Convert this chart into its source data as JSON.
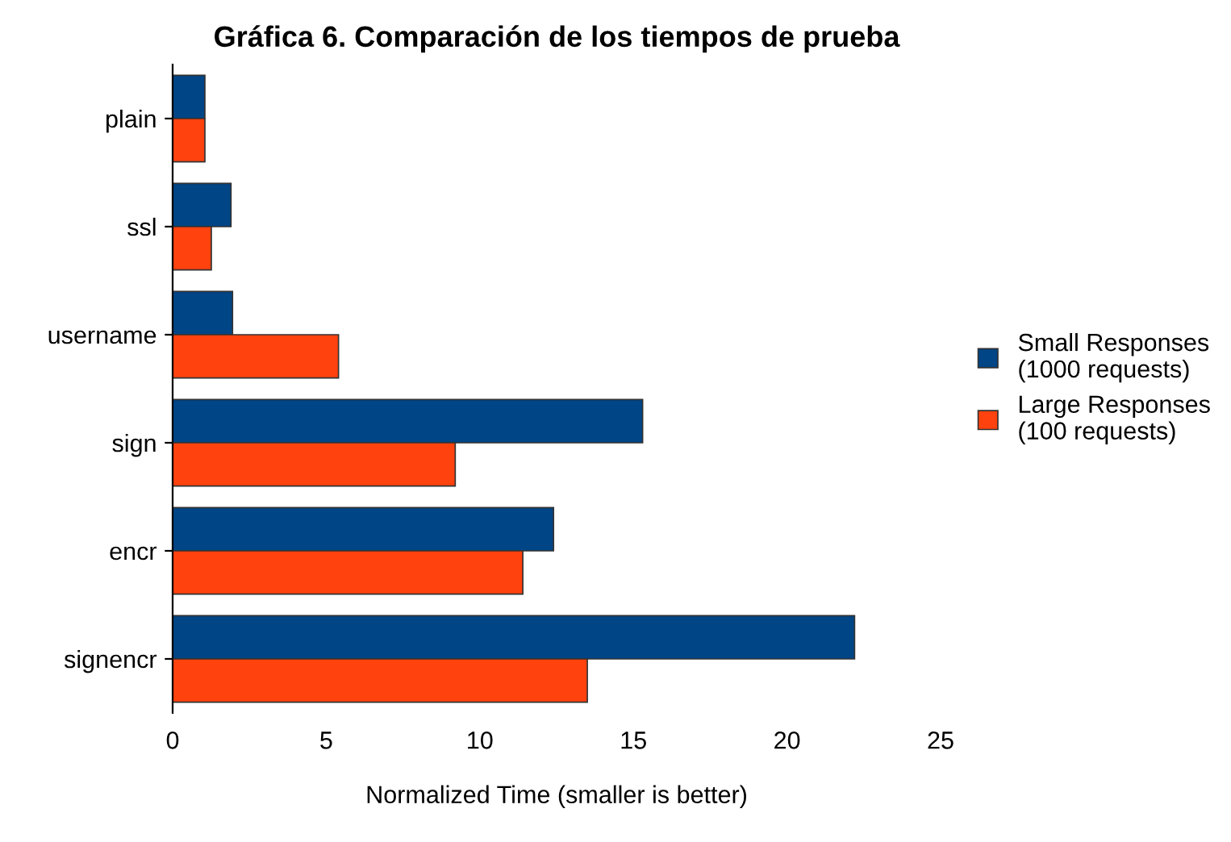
{
  "chart_data": {
    "type": "bar",
    "orientation": "horizontal",
    "title": "Gráfica 6. Comparación de los tiempos de prueba",
    "xlabel": "Normalized Time (smaller is better)",
    "categories": [
      "plain",
      "ssl",
      "username",
      "sign",
      "encr",
      "signencr"
    ],
    "series": [
      {
        "name": "Small Responses\n(1000 requests)",
        "color": "#004586",
        "values": [
          1.05,
          1.9,
          1.95,
          15.3,
          12.4,
          22.2
        ]
      },
      {
        "name": "Large Responses\n(100 requests)",
        "color": "#ff420e",
        "values": [
          1.05,
          1.26,
          5.4,
          9.2,
          11.4,
          13.5
        ]
      }
    ],
    "xlim": [
      0,
      25
    ],
    "xticks": [
      0,
      5,
      10,
      15,
      20,
      25
    ],
    "grid": false,
    "legend": "right"
  }
}
